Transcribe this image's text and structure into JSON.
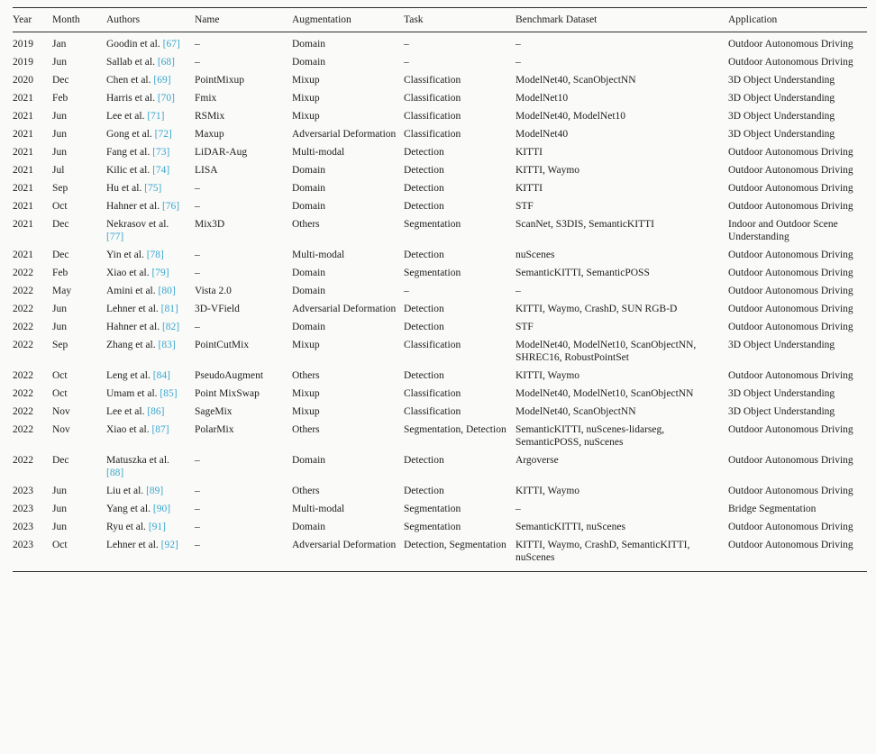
{
  "table": {
    "citation_color": "#37a6ce",
    "columns": [
      "Year",
      "Month",
      "Authors",
      "Name",
      "Augmentation",
      "Task",
      "Benchmark Dataset",
      "Application"
    ],
    "rows": [
      {
        "year": "2019",
        "month": "Jan",
        "authors": "Goodin et al.",
        "cite": "[67]",
        "name": "–",
        "augmentation": "Domain",
        "task": "–",
        "dataset": "–",
        "application": "Outdoor Autonomous Driving"
      },
      {
        "year": "2019",
        "month": "Jun",
        "authors": "Sallab et al.",
        "cite": "[68]",
        "name": "–",
        "augmentation": "Domain",
        "task": "–",
        "dataset": "–",
        "application": "Outdoor Autonomous Driving"
      },
      {
        "year": "2020",
        "month": "Dec",
        "authors": "Chen et al.",
        "cite": "[69]",
        "name": "PointMixup",
        "augmentation": "Mixup",
        "task": "Classification",
        "dataset": "ModelNet40, ScanObjectNN",
        "application": "3D Object Understanding"
      },
      {
        "year": "2021",
        "month": "Feb",
        "authors": "Harris et al.",
        "cite": "[70]",
        "name": "Fmix",
        "augmentation": "Mixup",
        "task": "Classification",
        "dataset": "ModelNet10",
        "application": "3D Object Understanding"
      },
      {
        "year": "2021",
        "month": "Jun",
        "authors": "Lee et al.",
        "cite": "[71]",
        "name": "RSMix",
        "augmentation": "Mixup",
        "task": "Classification",
        "dataset": "ModelNet40, ModelNet10",
        "application": "3D Object Understanding"
      },
      {
        "year": "2021",
        "month": "Jun",
        "authors": "Gong et al.",
        "cite": "[72]",
        "name": "Maxup",
        "augmentation": "Adversarial Deformation",
        "task": "Classification",
        "dataset": "ModelNet40",
        "application": "3D Object Understanding"
      },
      {
        "year": "2021",
        "month": "Jun",
        "authors": "Fang et al.",
        "cite": "[73]",
        "name": "LiDAR-Aug",
        "augmentation": "Multi-modal",
        "task": "Detection",
        "dataset": "KITTI",
        "application": "Outdoor Autonomous Driving"
      },
      {
        "year": "2021",
        "month": "Jul",
        "authors": "Kilic et al.",
        "cite": "[74]",
        "name": "LISA",
        "augmentation": "Domain",
        "task": "Detection",
        "dataset": "KITTI, Waymo",
        "application": "Outdoor Autonomous Driving"
      },
      {
        "year": "2021",
        "month": "Sep",
        "authors": "Hu et al.",
        "cite": "[75]",
        "name": "–",
        "augmentation": "Domain",
        "task": "Detection",
        "dataset": "KITTI",
        "application": "Outdoor Autonomous Driving"
      },
      {
        "year": "2021",
        "month": "Oct",
        "authors": "Hahner et al.",
        "cite": "[76]",
        "name": "–",
        "augmentation": "Domain",
        "task": "Detection",
        "dataset": "STF",
        "application": "Outdoor Autonomous Driving"
      },
      {
        "year": "2021",
        "month": "Dec",
        "authors": "Nekrasov et al.",
        "cite": "[77]",
        "name": "Mix3D",
        "augmentation": "Others",
        "task": "Segmentation",
        "dataset": "ScanNet, S3DIS, SemanticKITTI",
        "application": "Indoor and Outdoor Scene Understanding"
      },
      {
        "year": "2021",
        "month": "Dec",
        "authors": "Yin et al.",
        "cite": "[78]",
        "name": "–",
        "augmentation": "Multi-modal",
        "task": "Detection",
        "dataset": "nuScenes",
        "application": "Outdoor Autonomous Driving"
      },
      {
        "year": "2022",
        "month": "Feb",
        "authors": "Xiao et al.",
        "cite": "[79]",
        "name": "–",
        "augmentation": "Domain",
        "task": "Segmentation",
        "dataset": "SemanticKITTI, SemanticPOSS",
        "application": "Outdoor Autonomous Driving"
      },
      {
        "year": "2022",
        "month": "May",
        "authors": "Amini et al.",
        "cite": "[80]",
        "name": "Vista 2.0",
        "augmentation": "Domain",
        "task": "–",
        "dataset": "–",
        "application": "Outdoor Autonomous Driving"
      },
      {
        "year": "2022",
        "month": "Jun",
        "authors": "Lehner et al.",
        "cite": "[81]",
        "name": "3D-VField",
        "augmentation": "Adversarial Deformation",
        "task": "Detection",
        "dataset": "KITTI, Waymo, CrashD, SUN RGB-D",
        "application": "Outdoor Autonomous Driving"
      },
      {
        "year": "2022",
        "month": "Jun",
        "authors": "Hahner et al.",
        "cite": "[82]",
        "name": "–",
        "augmentation": "Domain",
        "task": "Detection",
        "dataset": "STF",
        "application": "Outdoor Autonomous Driving"
      },
      {
        "year": "2022",
        "month": "Sep",
        "authors": "Zhang et al.",
        "cite": "[83]",
        "name": "PointCutMix",
        "augmentation": "Mixup",
        "task": "Classification",
        "dataset": "ModelNet40, ModelNet10, ScanObjectNN, SHREC16, RobustPointSet",
        "application": "3D Object Understanding"
      },
      {
        "year": "2022",
        "month": "Oct",
        "authors": "Leng et al.",
        "cite": "[84]",
        "name": "PseudoAugment",
        "augmentation": "Others",
        "task": "Detection",
        "dataset": "KITTI, Waymo",
        "application": "Outdoor Autonomous Driving"
      },
      {
        "year": "2022",
        "month": "Oct",
        "authors": "Umam et al.",
        "cite": "[85]",
        "name": "Point MixSwap",
        "augmentation": "Mixup",
        "task": "Classification",
        "dataset": "ModelNet40, ModelNet10, ScanObjectNN",
        "application": "3D Object Understanding"
      },
      {
        "year": "2022",
        "month": "Nov",
        "authors": "Lee et al.",
        "cite": "[86]",
        "name": "SageMix",
        "augmentation": "Mixup",
        "task": "Classification",
        "dataset": "ModelNet40, ScanObjectNN",
        "application": "3D Object Understanding"
      },
      {
        "year": "2022",
        "month": "Nov",
        "authors": "Xiao et al.",
        "cite": "[87]",
        "name": "PolarMix",
        "augmentation": "Others",
        "task": "Segmentation, Detection",
        "dataset": "SemanticKITTI, nuScenes-lidarseg, SemanticPOSS, nuScenes",
        "application": "Outdoor Autonomous Driving"
      },
      {
        "year": "2022",
        "month": "Dec",
        "authors": "Matuszka et al.",
        "cite": "[88]",
        "name": "–",
        "augmentation": "Domain",
        "task": "Detection",
        "dataset": "Argoverse",
        "application": "Outdoor Autonomous Driving"
      },
      {
        "year": "2023",
        "month": "Jun",
        "authors": "Liu et al.",
        "cite": "[89]",
        "name": "–",
        "augmentation": "Others",
        "task": "Detection",
        "dataset": "KITTI, Waymo",
        "application": "Outdoor Autonomous Driving"
      },
      {
        "year": "2023",
        "month": "Jun",
        "authors": "Yang et al.",
        "cite": "[90]",
        "name": "–",
        "augmentation": "Multi-modal",
        "task": "Segmentation",
        "dataset": "–",
        "application": "Bridge Segmentation"
      },
      {
        "year": "2023",
        "month": "Jun",
        "authors": "Ryu et al.",
        "cite": "[91]",
        "name": "–",
        "augmentation": "Domain",
        "task": "Segmentation",
        "dataset": "SemanticKITTI, nuScenes",
        "application": "Outdoor Autonomous Driving"
      },
      {
        "year": "2023",
        "month": "Oct",
        "authors": "Lehner et al.",
        "cite": "[92]",
        "name": "–",
        "augmentation": "Adversarial Deformation",
        "task": "Detection, Segmentation",
        "dataset": "KITTI, Waymo, CrashD, SemanticKITTI, nuScenes",
        "application": "Outdoor Autonomous Driving"
      }
    ]
  }
}
